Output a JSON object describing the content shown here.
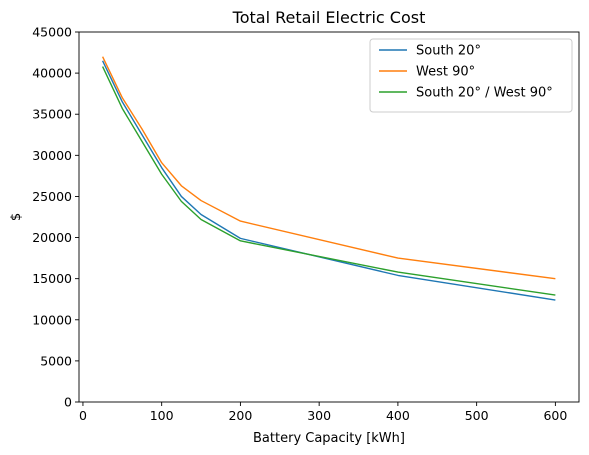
{
  "chart_data": {
    "type": "line",
    "title": "Total Retail Electric Cost",
    "xlabel": "Battery Capacity [kWh]",
    "ylabel": "$",
    "xlim": [
      -5,
      630
    ],
    "ylim": [
      0,
      45000
    ],
    "xticks": [
      0,
      100,
      200,
      300,
      400,
      500,
      600
    ],
    "yticks": [
      0,
      5000,
      10000,
      15000,
      20000,
      25000,
      30000,
      35000,
      40000,
      45000
    ],
    "grid": false,
    "legend_position": "top-right",
    "series": [
      {
        "name": "South 20°",
        "color": "#1f77b4",
        "x": [
          25,
          50,
          75,
          100,
          125,
          150,
          200,
          400,
          600
        ],
        "y": [
          41500,
          36500,
          32500,
          28500,
          25000,
          22800,
          19900,
          15400,
          12400
        ]
      },
      {
        "name": "West 90°",
        "color": "#ff7f0e",
        "x": [
          25,
          50,
          75,
          100,
          125,
          150,
          200,
          400,
          600
        ],
        "y": [
          42000,
          37000,
          33200,
          29100,
          26300,
          24500,
          22000,
          17500,
          15000
        ]
      },
      {
        "name": "South 20° / West 90°",
        "color": "#2ca02c",
        "x": [
          25,
          50,
          75,
          100,
          125,
          150,
          200,
          400,
          600
        ],
        "y": [
          40800,
          35700,
          31700,
          27700,
          24400,
          22200,
          19600,
          15800,
          13000
        ]
      }
    ]
  }
}
